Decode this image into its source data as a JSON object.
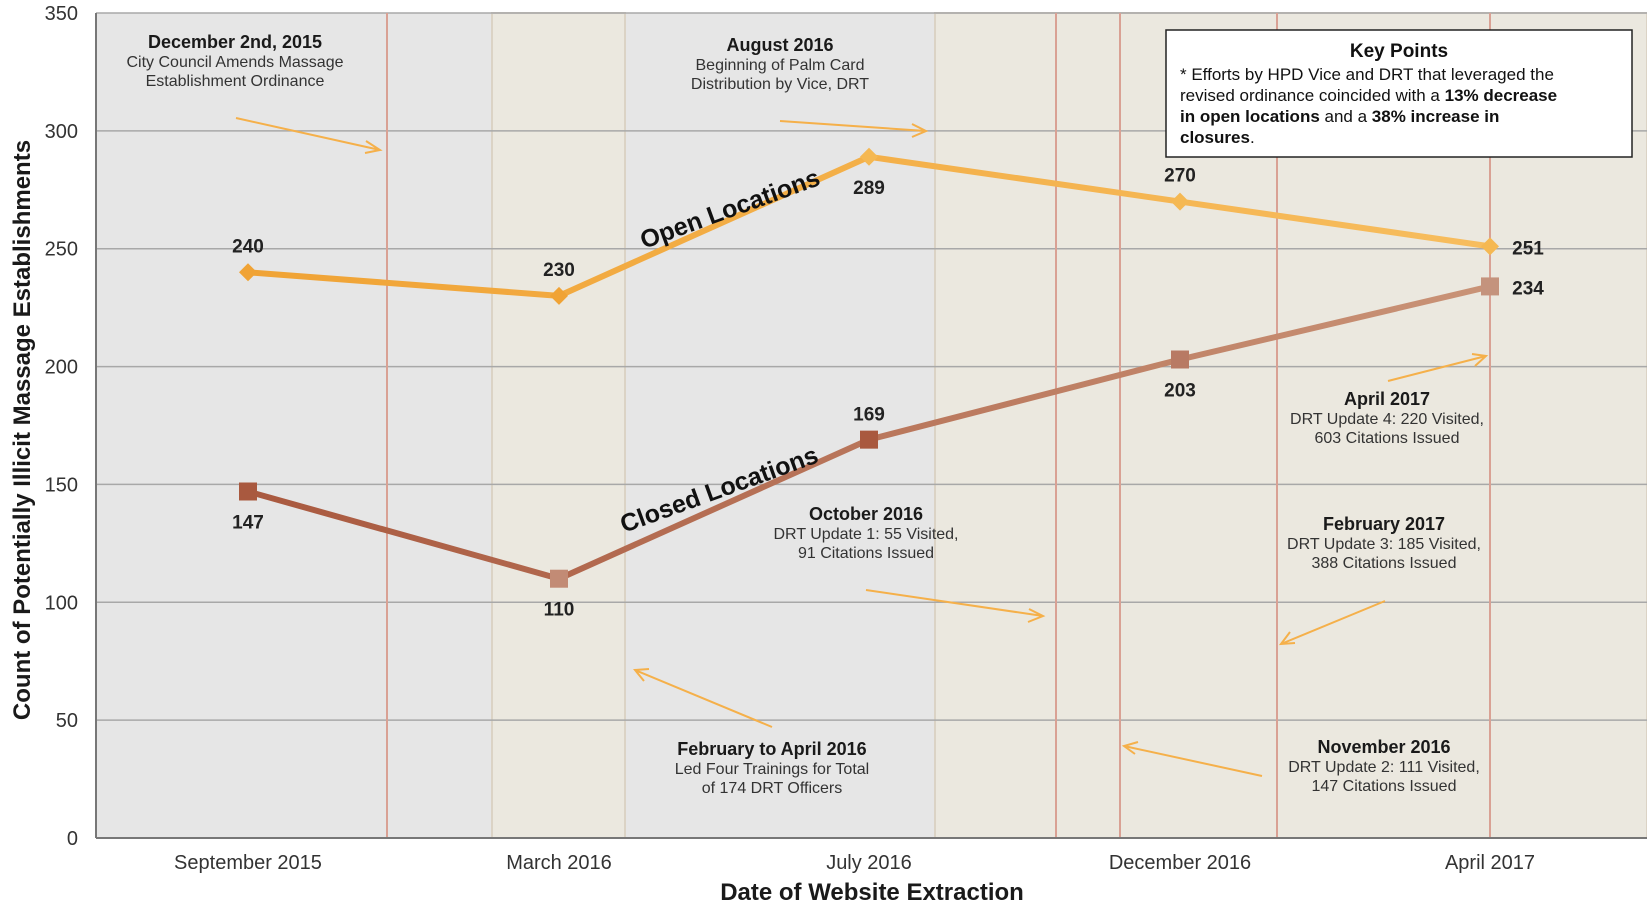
{
  "chart_data": {
    "type": "line",
    "title": "",
    "xlabel": "Date of Website Extraction",
    "ylabel": "Count of Potentially Illicit Massage Establishments",
    "categories": [
      "September 2015",
      "March 2016",
      "July 2016",
      "December 2016",
      "April 2017"
    ],
    "ylim": [
      0,
      350
    ],
    "yticks": [
      0,
      50,
      100,
      150,
      200,
      250,
      300,
      350
    ],
    "grid": true,
    "series": [
      {
        "name": "Open Locations",
        "values": [
          240,
          230,
          289,
          270,
          251
        ],
        "color": "#f2a93b",
        "marker": "diamond"
      },
      {
        "name": "Closed Locations",
        "values": [
          147,
          110,
          169,
          203,
          234
        ],
        "color": "#b5705a",
        "marker": "square"
      }
    ],
    "value_labels": {
      "Open Locations": [
        "240",
        "230",
        "289",
        "270",
        "251"
      ],
      "Closed Locations": [
        "147",
        "110",
        "169",
        "203",
        "234"
      ]
    },
    "colors": {
      "background": "#e6e6e6",
      "shaded_period": "#ece8dd",
      "event_line": "#d7a093",
      "arrow": "#f5b04a"
    },
    "annotations": [
      {
        "title": "December 2nd, 2015",
        "lines": [
          "City Council Amends Massage",
          "Establishment Ordinance"
        ]
      },
      {
        "title": "August 2016",
        "lines": [
          "Beginning of Palm Card",
          "Distribution by Vice, DRT"
        ]
      },
      {
        "title": "October 2016",
        "lines": [
          "DRT Update 1: 55 Visited,",
          "91 Citations Issued"
        ]
      },
      {
        "title": "February to April 2016",
        "lines": [
          "Led Four Trainings for Total",
          "of 174 DRT Officers"
        ]
      },
      {
        "title": "April 2017",
        "lines": [
          "DRT Update 4: 220 Visited,",
          "603 Citations Issued"
        ]
      },
      {
        "title": "February 2017",
        "lines": [
          "DRT Update 3: 185 Visited,",
          "388 Citations Issued"
        ]
      },
      {
        "title": "November 2016",
        "lines": [
          "DRT Update 2: 111 Visited,",
          "147 Citations Issued"
        ]
      }
    ],
    "key_points": {
      "title": "Key Points",
      "line1": "*  Efforts by HPD Vice and DRT that leveraged the",
      "line2_normal": "revised ordinance coincided with a ",
      "line2_bold": "13% decrease",
      "line3_bold": "in open locations",
      "line3_normal": " and a ",
      "line3_bold2": "38% increase in",
      "line4_bold": "closures",
      "line4_normal": "."
    }
  }
}
